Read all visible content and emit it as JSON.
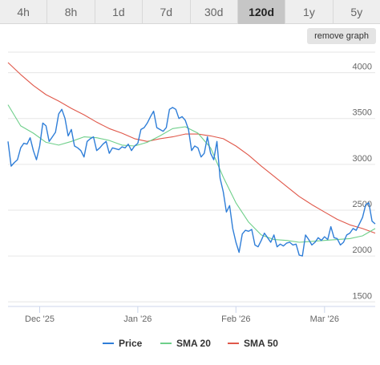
{
  "range_tabs": [
    {
      "label": "4h",
      "active": false
    },
    {
      "label": "8h",
      "active": false
    },
    {
      "label": "1d",
      "active": false
    },
    {
      "label": "7d",
      "active": false
    },
    {
      "label": "30d",
      "active": false
    },
    {
      "label": "120d",
      "active": true
    },
    {
      "label": "1y",
      "active": false
    },
    {
      "label": "5y",
      "active": false
    }
  ],
  "remove_graph_label": "remove graph",
  "chart_data": {
    "type": "line",
    "title": "",
    "xlabel": "",
    "ylabel": "",
    "ylim": [
      1450,
      4250
    ],
    "y_ticks": [
      1500,
      2000,
      2500,
      3000,
      3500,
      4000
    ],
    "x_ticks": [
      {
        "label": "Dec '25",
        "day": 10
      },
      {
        "label": "Jan '26",
        "day": 41
      },
      {
        "label": "Feb '26",
        "day": 72
      },
      {
        "label": "Mar '26",
        "day": 100
      }
    ],
    "xlim": [
      0,
      116
    ],
    "grid": true,
    "legend_position": "bottom",
    "series": [
      {
        "name": "Price",
        "color": "#2f7ed8",
        "x": [
          0,
          1,
          2,
          3,
          4,
          5,
          6,
          7,
          8,
          9,
          10,
          11,
          12,
          13,
          14,
          15,
          16,
          17,
          18,
          19,
          20,
          21,
          22,
          23,
          24,
          25,
          26,
          27,
          28,
          29,
          30,
          31,
          32,
          33,
          34,
          35,
          36,
          37,
          38,
          39,
          40,
          41,
          42,
          43,
          44,
          45,
          46,
          47,
          48,
          49,
          50,
          51,
          52,
          53,
          54,
          55,
          56,
          57,
          58,
          59,
          60,
          61,
          62,
          63,
          64,
          65,
          66,
          67,
          68,
          69,
          70,
          71,
          72,
          73,
          74,
          75,
          76,
          77,
          78,
          79,
          80,
          81,
          82,
          83,
          84,
          85,
          86,
          87,
          88,
          89,
          90,
          91,
          92,
          93,
          94,
          95,
          96,
          97,
          98,
          99,
          100,
          101,
          102,
          103,
          104,
          105,
          106,
          107,
          108,
          109,
          110,
          111,
          112,
          113,
          114,
          115,
          116
        ],
        "values": [
          3250,
          2980,
          3020,
          3050,
          3180,
          3230,
          3220,
          3290,
          3150,
          3050,
          3200,
          3450,
          3420,
          3250,
          3300,
          3350,
          3550,
          3600,
          3500,
          3310,
          3380,
          3200,
          3180,
          3150,
          3080,
          3250,
          3280,
          3300,
          3150,
          3180,
          3220,
          3250,
          3120,
          3180,
          3170,
          3160,
          3190,
          3180,
          3220,
          3150,
          3200,
          3230,
          3380,
          3400,
          3450,
          3520,
          3580,
          3400,
          3380,
          3360,
          3400,
          3600,
          3620,
          3600,
          3500,
          3520,
          3480,
          3380,
          3150,
          3200,
          3180,
          3080,
          3120,
          3300,
          3120,
          3050,
          3250,
          2850,
          2700,
          2480,
          2550,
          2300,
          2150,
          2040,
          2240,
          2280,
          2270,
          2290,
          2120,
          2100,
          2170,
          2250,
          2200,
          2150,
          2230,
          2100,
          2130,
          2110,
          2140,
          2150,
          2120,
          2130,
          2010,
          2000,
          2230,
          2180,
          2120,
          2150,
          2200,
          2170,
          2210,
          2180,
          2320,
          2200,
          2190,
          2120,
          2150,
          2230,
          2250,
          2300,
          2280,
          2350,
          2420,
          2560,
          2580,
          2380,
          2350
        ]
      },
      {
        "name": "SMA 20",
        "color": "#6ecf8a",
        "x": [
          0,
          4,
          8,
          12,
          16,
          20,
          24,
          28,
          32,
          36,
          40,
          44,
          48,
          52,
          56,
          60,
          64,
          68,
          72,
          76,
          80,
          84,
          88,
          92,
          96,
          100,
          104,
          108,
          112,
          116
        ],
        "values": [
          3650,
          3420,
          3340,
          3240,
          3210,
          3250,
          3300,
          3290,
          3260,
          3210,
          3200,
          3240,
          3310,
          3390,
          3410,
          3340,
          3180,
          2860,
          2580,
          2370,
          2230,
          2180,
          2170,
          2150,
          2160,
          2170,
          2180,
          2190,
          2220,
          2300
        ]
      },
      {
        "name": "SMA 50",
        "color": "#e0584a",
        "x": [
          0,
          4,
          8,
          12,
          16,
          20,
          24,
          28,
          32,
          36,
          40,
          44,
          48,
          52,
          56,
          60,
          64,
          68,
          72,
          76,
          80,
          84,
          88,
          92,
          96,
          100,
          104,
          108,
          112,
          116
        ],
        "values": [
          4110,
          3980,
          3860,
          3760,
          3690,
          3610,
          3540,
          3460,
          3390,
          3340,
          3280,
          3250,
          3280,
          3300,
          3330,
          3330,
          3310,
          3280,
          3200,
          3100,
          2980,
          2870,
          2760,
          2650,
          2560,
          2480,
          2400,
          2340,
          2300,
          2250
        ]
      }
    ]
  }
}
